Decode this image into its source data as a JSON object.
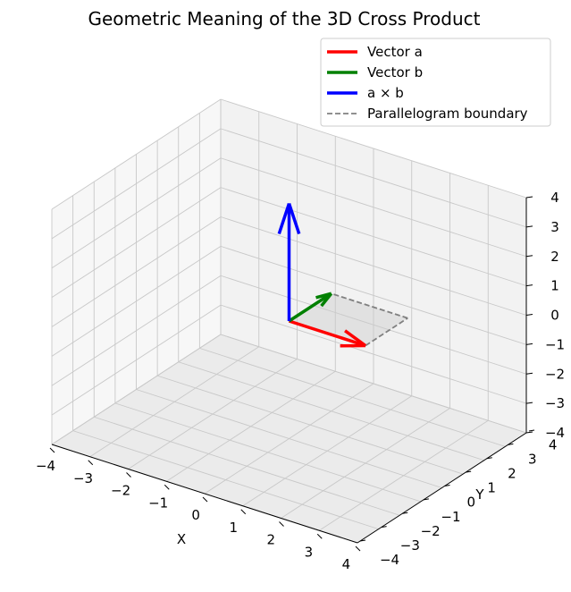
{
  "chart_data": {
    "type": "3d-vector",
    "title": "Geometric Meaning of the 3D Cross Product",
    "xlabel": "X",
    "ylabel": "Y",
    "zlabel": "",
    "xlim": [
      -4,
      4
    ],
    "ylim": [
      -4,
      4
    ],
    "zlim": [
      -4,
      4
    ],
    "x_ticks": [
      "−4",
      "−3",
      "−2",
      "−1",
      "0",
      "1",
      "2",
      "3",
      "4"
    ],
    "y_ticks": [
      "−4",
      "−3",
      "−2",
      "−1",
      "0",
      "1",
      "2",
      "3",
      "4"
    ],
    "z_ticks": [
      "−4",
      "−3",
      "−2",
      "−1",
      "0",
      "1",
      "2",
      "3",
      "4"
    ],
    "grid": true,
    "legend_position": "top-right",
    "vectors": [
      {
        "name": "Vector a",
        "color": "#ff0000",
        "origin": [
          0,
          0,
          0
        ],
        "components": [
          2,
          0,
          0
        ]
      },
      {
        "name": "Vector b",
        "color": "#008000",
        "origin": [
          0,
          0,
          0
        ],
        "components": [
          0,
          2,
          0
        ]
      },
      {
        "name": "a × b",
        "color": "#0000ff",
        "origin": [
          0,
          0,
          0
        ],
        "components": [
          0,
          0,
          4
        ]
      }
    ],
    "parallelogram": {
      "name": "Parallelogram boundary",
      "vertices": [
        [
          0,
          0,
          0
        ],
        [
          2,
          0,
          0
        ],
        [
          2,
          2,
          0
        ],
        [
          0,
          2,
          0
        ]
      ],
      "line_color": "#808080",
      "fill_color": "#cccccc",
      "line_style": "dashed"
    }
  }
}
